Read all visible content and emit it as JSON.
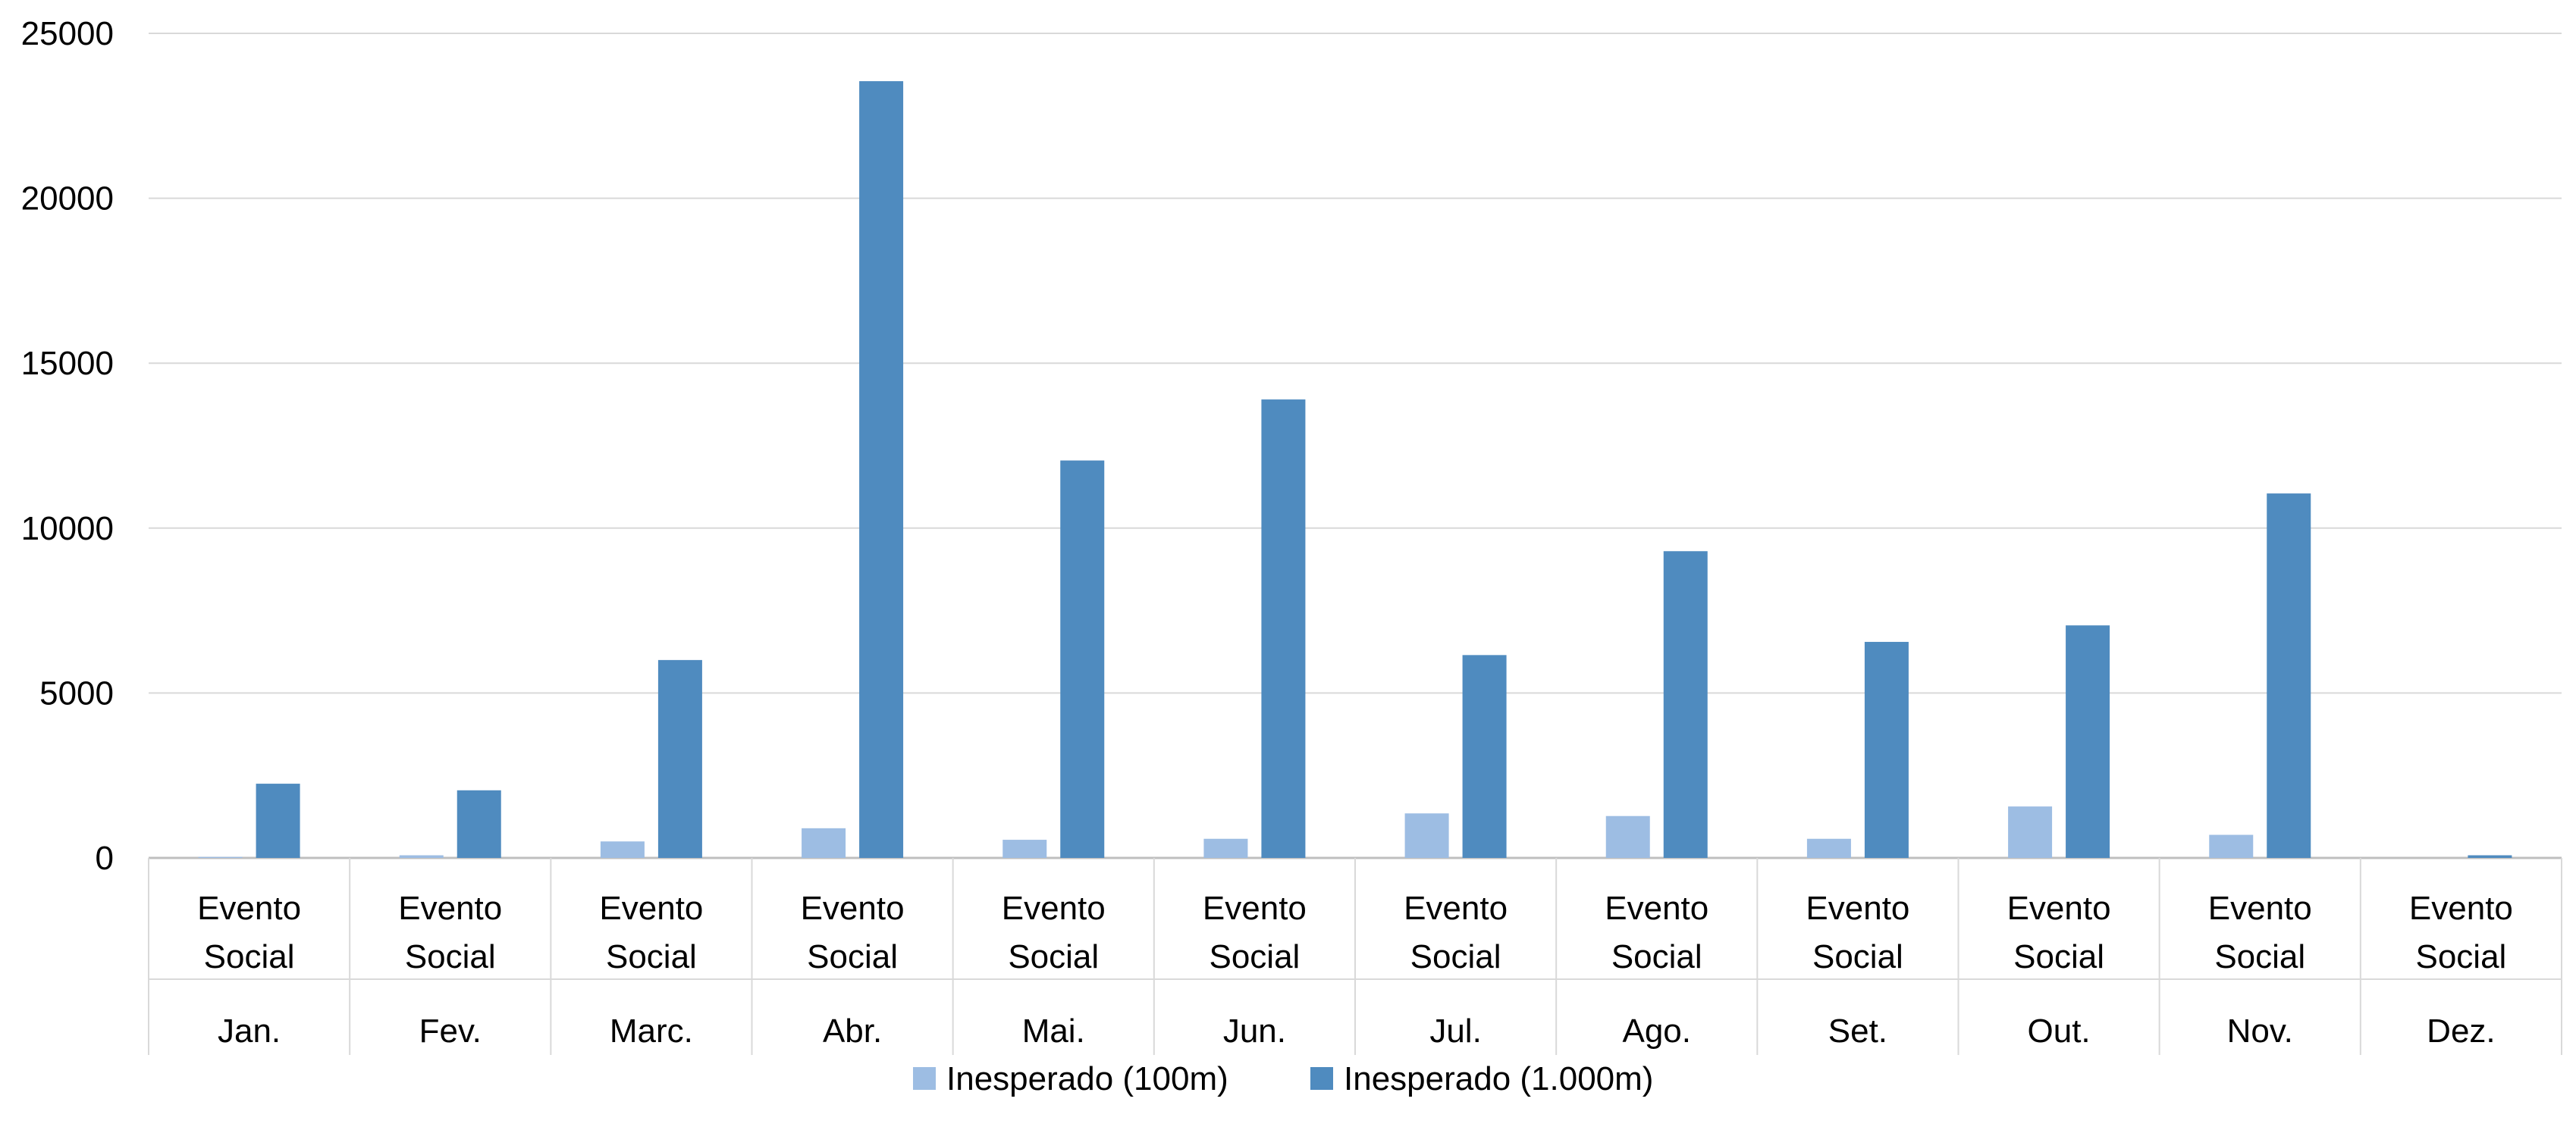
{
  "chart_data": {
    "type": "bar",
    "title": "",
    "xlabel": "",
    "ylabel": "",
    "ylim": [
      0,
      25000
    ],
    "yticks": [
      "0",
      "5000",
      "10000",
      "15000",
      "20000",
      "25000"
    ],
    "grid": true,
    "legend_position": "bottom",
    "categories": [
      "Jan.",
      "Fev.",
      "Marc.",
      "Abr.",
      "Mai.",
      "Jun.",
      "Jul.",
      "Ago.",
      "Set.",
      "Out.",
      "Nov.",
      "Dez."
    ],
    "subcategory_lines": [
      "Evento",
      "Social"
    ],
    "series": [
      {
        "name": "Inesperado (100m)",
        "color": "#9dbde3",
        "values": [
          30,
          80,
          500,
          900,
          550,
          580,
          1350,
          1270,
          580,
          1560,
          700,
          0
        ]
      },
      {
        "name": "Inesperado (1.000m)",
        "color": "#4f8bbf",
        "values": [
          2250,
          2050,
          6000,
          23550,
          12050,
          13900,
          6150,
          9300,
          6550,
          7050,
          11050,
          80
        ]
      }
    ]
  }
}
